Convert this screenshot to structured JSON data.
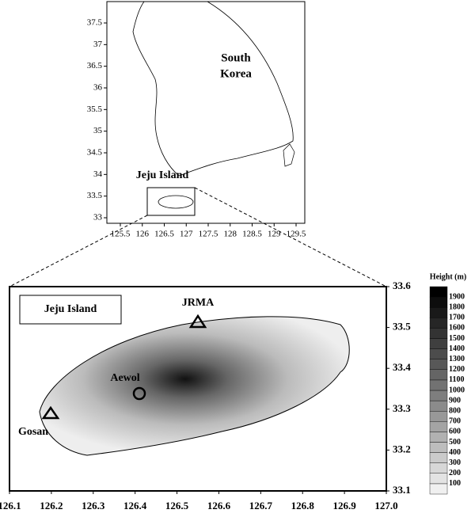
{
  "overview_map": {
    "region_label": [
      "South",
      "Korea"
    ],
    "inset_label": "Jeju Island",
    "xticks": [
      125.5,
      126,
      126.5,
      127,
      127.5,
      128,
      128.5,
      129,
      129.5
    ],
    "yticks": [
      33,
      33.5,
      34,
      34.5,
      35,
      35.5,
      36,
      36.5,
      37,
      37.5
    ]
  },
  "detail_map": {
    "title": "Jeju Island",
    "xticks": [
      126.1,
      126.2,
      126.3,
      126.4,
      126.5,
      126.6,
      126.7,
      126.8,
      126.9,
      {
        "value": 127,
        "label": "127.0"
      }
    ],
    "yticks": [
      33.1,
      33.2,
      33.3,
      33.4,
      33.5,
      33.6
    ],
    "sites": [
      "JRMA",
      "Aewol",
      "Gosan"
    ]
  },
  "colorbar": {
    "title": "Height (m)",
    "levels": [
      100,
      200,
      300,
      400,
      500,
      600,
      700,
      800,
      900,
      1000,
      1100,
      1200,
      1300,
      1400,
      1500,
      1600,
      1700,
      1800,
      1900
    ]
  }
}
